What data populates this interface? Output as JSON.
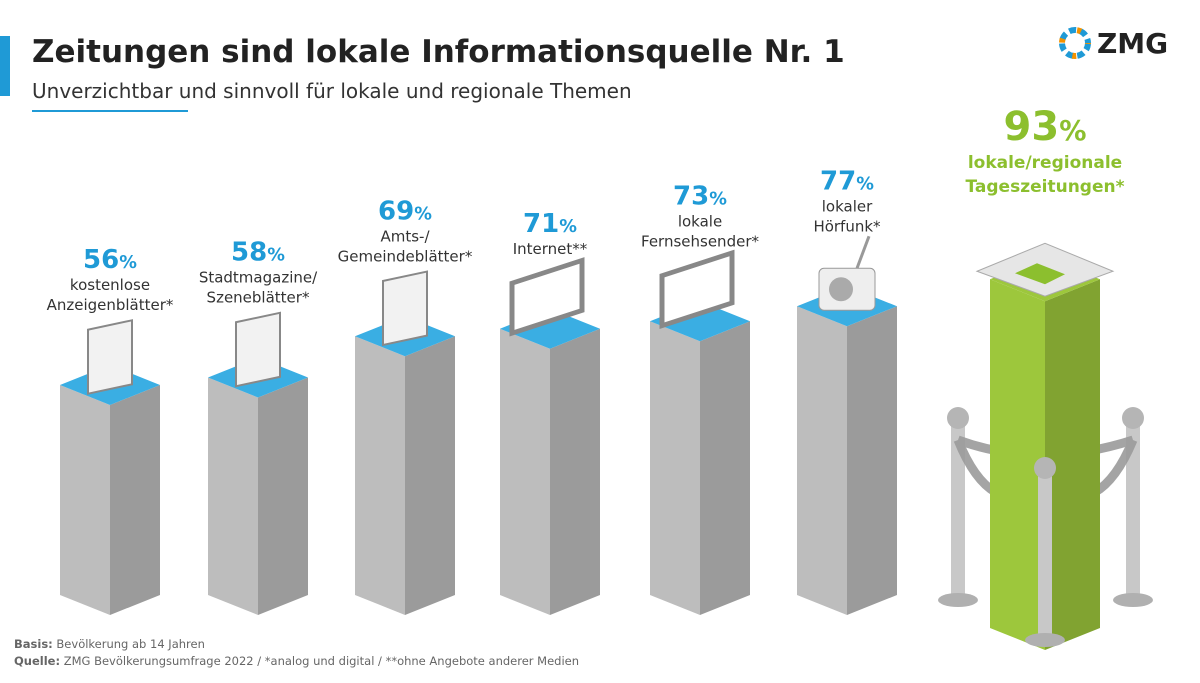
{
  "chart_data": {
    "type": "bar",
    "title": "Zeitungen sind lokale Informationsquelle Nr. 1",
    "subtitle": "Unverzichtbar und sinnvoll für lokale und regionale Themen",
    "logo": "ZMG",
    "categories": [
      "kostenlose\nAnzeigenblätter*",
      "Stadtmagazine/\nSzeneblätter*",
      "Amts-/\nGemeindeblätter*",
      "Internet**",
      "lokale\nFernsehsender*",
      "lokaler\nHörfunk*",
      "lokale/regionale\nTageszeitungen*"
    ],
    "values": [
      56,
      58,
      69,
      71,
      73,
      77,
      93
    ],
    "value_labels": [
      "56%",
      "58%",
      "69%",
      "71%",
      "73%",
      "77%",
      "93%"
    ],
    "colors": [
      "#bdbdbd",
      "#bdbdbd",
      "#bdbdbd",
      "#bdbdbd",
      "#bdbdbd",
      "#bdbdbd",
      "#9dc73c"
    ],
    "notes": [
      {
        "label": "Basis:",
        "text": "Bevölkerung ab 14 Jahren"
      },
      {
        "label": "Quelle:",
        "text": "ZMG Bevölkerungsumfrage 2022 / *analog und digital / **ohne Angebote anderer Medien"
      }
    ]
  }
}
